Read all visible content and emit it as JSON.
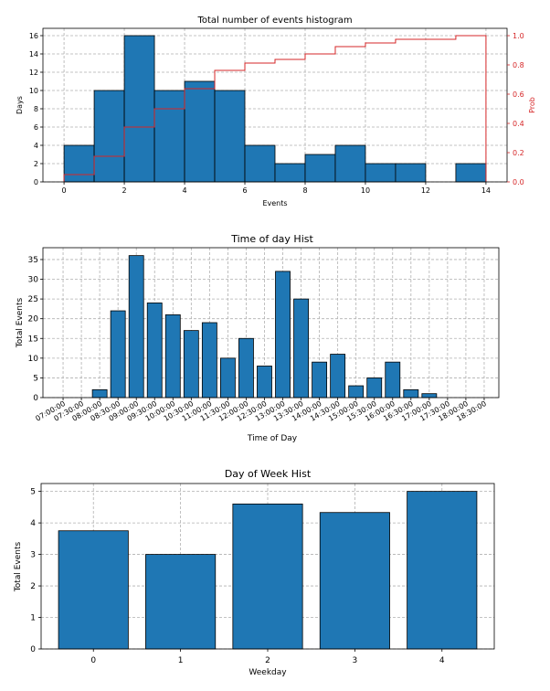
{
  "colors": {
    "bar_fill": "#1f77b4",
    "bar_edge": "#000000",
    "grid": "#b0b0b0",
    "cdf_line": "#d62728",
    "axis": "#000000"
  },
  "chart_data": [
    {
      "type": "bar",
      "subtype": "histogram",
      "title": "Total number of events histogram",
      "xlabel": "Events",
      "ylabel": "Days",
      "ylabel_right": "Prob",
      "bin_edges": [
        0,
        1,
        2,
        3,
        4,
        5,
        6,
        7,
        8,
        9,
        10,
        11,
        12,
        13,
        14
      ],
      "values": [
        4,
        10,
        16,
        10,
        11,
        10,
        4,
        2,
        3,
        4,
        2,
        2,
        0,
        2
      ],
      "xlim": [
        -0.7,
        14.7
      ],
      "ylim": [
        0,
        16.8
      ],
      "ylim_right": [
        0,
        1.05
      ],
      "xticks": [
        0,
        2,
        4,
        6,
        8,
        10,
        12,
        14
      ],
      "xtick_labels": [
        "0",
        "2",
        "4",
        "6",
        "8",
        "10",
        "12",
        "14"
      ],
      "yticks": [
        0,
        2,
        4,
        6,
        8,
        10,
        12,
        14,
        16
      ],
      "ytick_labels": [
        "0",
        "2",
        "4",
        "6",
        "8",
        "10",
        "12",
        "14",
        "16"
      ],
      "yticks_right": [
        0,
        0.2,
        0.4,
        0.6,
        0.8,
        1.0
      ],
      "ytick_labels_right": [
        "0.0",
        "0.2",
        "0.4",
        "0.6",
        "0.8",
        "1.0"
      ],
      "cdf": {
        "values": [
          0.05,
          0.175,
          0.375,
          0.5,
          0.6375,
          0.7625,
          0.8125,
          0.8375,
          0.875,
          0.925,
          0.95,
          0.975,
          0.975,
          1.0
        ]
      },
      "grid": true
    },
    {
      "type": "bar",
      "title": "Time of day Hist",
      "xlabel": "Time of Day",
      "ylabel": "Total Events",
      "categories": [
        "07:00:00",
        "07:30:00",
        "08:00:00",
        "08:30:00",
        "09:00:00",
        "09:30:00",
        "10:00:00",
        "10:30:00",
        "11:00:00",
        "11:30:00",
        "12:00:00",
        "12:30:00",
        "13:00:00",
        "13:30:00",
        "14:00:00",
        "14:30:00",
        "15:00:00",
        "15:30:00",
        "16:00:00",
        "16:30:00",
        "17:00:00",
        "17:30:00",
        "18:00:00",
        "18:30:00"
      ],
      "values": [
        0,
        0,
        2,
        22,
        36,
        24,
        21,
        17,
        19,
        10,
        15,
        8,
        32,
        25,
        9,
        11,
        3,
        5,
        9,
        2,
        1,
        0,
        0,
        0
      ],
      "ylim": [
        0,
        38
      ],
      "yticks": [
        0,
        5,
        10,
        15,
        20,
        25,
        30,
        35
      ],
      "ytick_labels": [
        "0",
        "5",
        "10",
        "15",
        "20",
        "25",
        "30",
        "35"
      ],
      "grid": true
    },
    {
      "type": "bar",
      "title": "Day of Week Hist",
      "xlabel": "Weekday",
      "ylabel": "Total Events",
      "categories": [
        "0",
        "1",
        "2",
        "3",
        "4"
      ],
      "values": [
        3.75,
        3.0,
        4.6,
        4.33,
        5.0
      ],
      "ylim": [
        0,
        5.25
      ],
      "yticks": [
        0,
        1,
        2,
        3,
        4,
        5
      ],
      "ytick_labels": [
        "0",
        "1",
        "2",
        "3",
        "4",
        "5"
      ],
      "grid": true
    }
  ]
}
